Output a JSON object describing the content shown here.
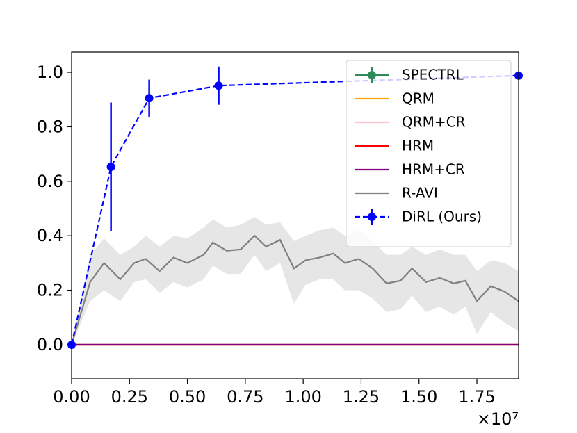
{
  "chart_data": {
    "type": "line",
    "xlim": [
      0,
      1.93
    ],
    "ylim": [
      -0.125,
      1.074
    ],
    "xticks": [
      {
        "value": 0,
        "label": "0.00"
      },
      0.25,
      {
        "value": 0.5,
        "label": "0.50"
      },
      0.75,
      {
        "value": 1,
        "label": "1.00"
      },
      1.25,
      {
        "value": 1.5,
        "label": "1.50"
      },
      1.75
    ],
    "yticks": [
      {
        "value": 0,
        "label": "0.0"
      },
      0.2,
      0.4,
      0.6,
      0.8,
      {
        "value": 1,
        "label": "1.0"
      }
    ],
    "x_offset_label": "×10⁷",
    "legend": "upper right",
    "series": [
      {
        "name": "SPECTRL",
        "color": "#2e8b57",
        "x": [
          0,
          1.93
        ],
        "values": [
          0,
          0
        ],
        "style": "errorbar"
      },
      {
        "name": "QRM",
        "color": "#ffa500",
        "x": [
          0,
          1.93
        ],
        "values": [
          0,
          0
        ]
      },
      {
        "name": "QRM+CR",
        "color": "#ffc0cb",
        "x": [
          0,
          1.93
        ],
        "values": [
          0,
          0
        ]
      },
      {
        "name": "HRM",
        "color": "#ff0000",
        "x": [
          0,
          1.93
        ],
        "values": [
          0,
          0
        ]
      },
      {
        "name": "HRM+CR",
        "color": "#800080",
        "x": [
          0,
          1.93
        ],
        "values": [
          0,
          0
        ]
      },
      {
        "name": "R-AVI",
        "color": "#808080",
        "x": [
          0,
          0.08,
          0.14,
          0.21,
          0.27,
          0.32,
          0.38,
          0.44,
          0.5,
          0.57,
          0.61,
          0.67,
          0.73,
          0.79,
          0.84,
          0.9,
          0.96,
          1.01,
          1.07,
          1.13,
          1.18,
          1.24,
          1.3,
          1.36,
          1.42,
          1.47,
          1.53,
          1.59,
          1.65,
          1.7,
          1.75,
          1.81,
          1.87,
          1.93
        ],
        "values": [
          0,
          0.23,
          0.3,
          0.24,
          0.3,
          0.315,
          0.27,
          0.32,
          0.3,
          0.33,
          0.375,
          0.345,
          0.35,
          0.4,
          0.36,
          0.385,
          0.28,
          0.31,
          0.32,
          0.335,
          0.3,
          0.315,
          0.28,
          0.225,
          0.235,
          0.28,
          0.23,
          0.245,
          0.225,
          0.235,
          0.16,
          0.215,
          0.195,
          0.16
        ],
        "upper": [
          0,
          0.33,
          0.39,
          0.33,
          0.36,
          0.4,
          0.36,
          0.4,
          0.39,
          0.43,
          0.46,
          0.43,
          0.44,
          0.47,
          0.44,
          0.45,
          0.38,
          0.4,
          0.42,
          0.43,
          0.4,
          0.42,
          0.38,
          0.33,
          0.33,
          0.36,
          0.33,
          0.35,
          0.33,
          0.33,
          0.27,
          0.31,
          0.3,
          0.27
        ],
        "lower": [
          0,
          0.16,
          0.2,
          0.16,
          0.23,
          0.24,
          0.19,
          0.23,
          0.21,
          0.24,
          0.29,
          0.26,
          0.26,
          0.33,
          0.27,
          0.3,
          0.15,
          0.22,
          0.24,
          0.24,
          0.2,
          0.2,
          0.17,
          0.12,
          0.13,
          0.18,
          0.12,
          0.14,
          0.11,
          0.14,
          0.04,
          0.12,
          0.08,
          0.05
        ]
      },
      {
        "name": "DiRL (Ours)",
        "color": "#0000ff",
        "style": "errorbar",
        "dashed": true,
        "x": [
          0,
          0.17,
          0.335,
          0.635,
          1.93
        ],
        "values": [
          0,
          0.653,
          0.905,
          0.951,
          0.988
        ],
        "errors": [
          0,
          0.236,
          0.068,
          0.07,
          0.01
        ]
      }
    ]
  }
}
